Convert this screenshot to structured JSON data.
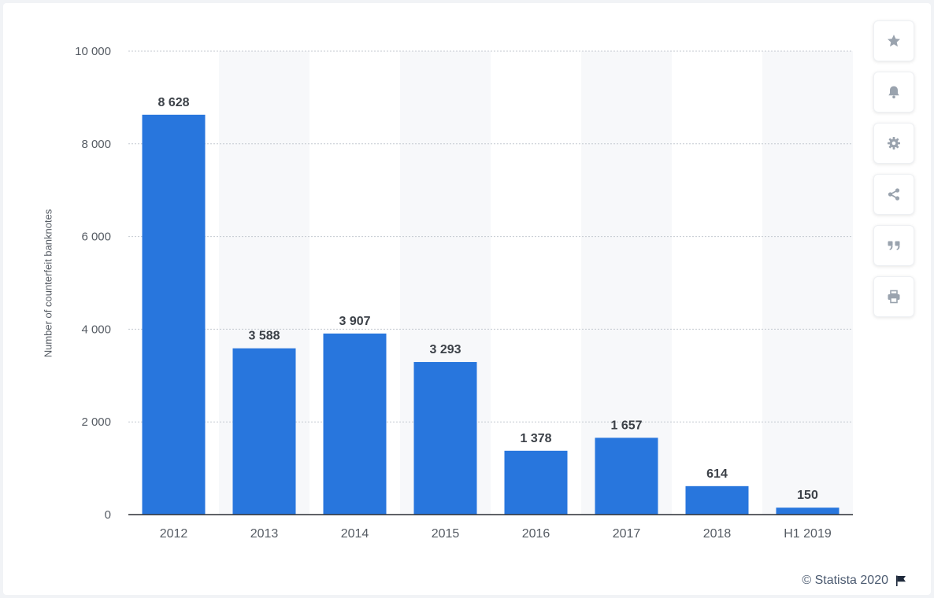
{
  "chart_data": {
    "type": "bar",
    "categories": [
      "2012",
      "2013",
      "2014",
      "2015",
      "2016",
      "2017",
      "2018",
      "H1 2019"
    ],
    "values": [
      8628,
      3588,
      3907,
      3293,
      1378,
      1657,
      614,
      150
    ],
    "value_labels": [
      "8 628",
      "3 588",
      "3 907",
      "3 293",
      "1 378",
      "1 657",
      "614",
      "150"
    ],
    "ylabel": "Number of counterfeit banknotes",
    "ylim": [
      0,
      10000
    ],
    "yticks": [
      0,
      2000,
      4000,
      6000,
      8000,
      10000
    ],
    "ytick_labels": [
      "0",
      "2 000",
      "4 000",
      "6 000",
      "8 000",
      "10 000"
    ],
    "grid": true,
    "bar_color": "#2876dd"
  },
  "toolbar": {
    "buttons": [
      {
        "name": "star-icon"
      },
      {
        "name": "bell-icon"
      },
      {
        "name": "gear-icon"
      },
      {
        "name": "share-icon"
      },
      {
        "name": "quote-icon"
      },
      {
        "name": "print-icon"
      }
    ],
    "icon_color": "#9aa3ae"
  },
  "footer": {
    "credit": "© Statista 2020",
    "flag_icon": "flag-icon"
  }
}
